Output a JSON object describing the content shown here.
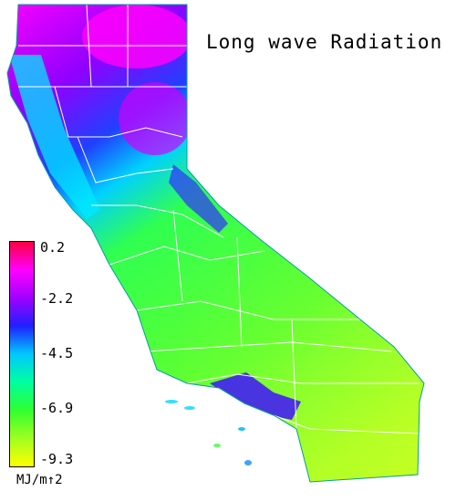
{
  "title": "Long wave Radiation",
  "legend": {
    "ticks": [
      "0.2",
      "-2.2",
      "-4.5",
      "-6.9",
      "-9.3"
    ],
    "unit": "MJ/m↑2",
    "colors": [
      "#ff0040",
      "#ff00ff",
      "#a000ff",
      "#2020ff",
      "#00c8ff",
      "#00ffa0",
      "#30ff30",
      "#a0ff20",
      "#ffff00"
    ]
  },
  "region": "California",
  "palette": {
    "north": "#c800ff",
    "coast": "#00e0ff",
    "central_valley": "#40ff40",
    "desert": "#c0ff20",
    "county_lines": "#ffffff"
  }
}
